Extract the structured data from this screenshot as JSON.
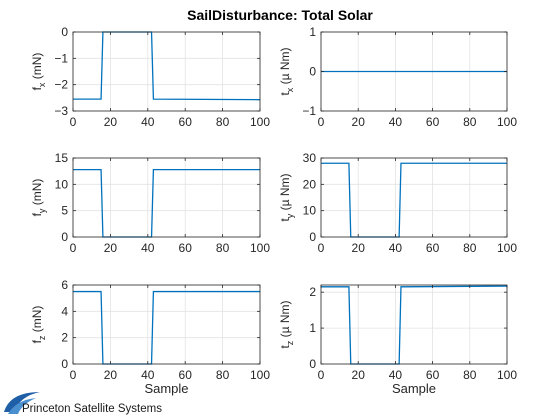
{
  "chart_data": {
    "title": "SailDisturbance: Total Solar",
    "type": "line",
    "line_color": "#0072BD",
    "grid": true,
    "subplots": [
      {
        "name": "fx",
        "ylabel": "f_x (mN)",
        "ylabel_main": "f",
        "ylabel_sub": "x",
        "ylabel_rest": " (mN)",
        "xlabel": "",
        "xlim": [
          0,
          100
        ],
        "ylim": [
          -3,
          0
        ],
        "xticks": [
          0,
          20,
          40,
          60,
          80,
          100
        ],
        "yticks": [
          0,
          -1,
          -2,
          -3
        ],
        "x": [
          0,
          15,
          16,
          42,
          43,
          100
        ],
        "y": [
          -2.55,
          -2.55,
          0,
          0,
          -2.55,
          -2.57
        ]
      },
      {
        "name": "tx",
        "ylabel": "t_x (µ Nm)",
        "ylabel_main": "t",
        "ylabel_sub": "x",
        "ylabel_rest": " (µ Nm)",
        "xlabel": "",
        "xlim": [
          0,
          100
        ],
        "ylim": [
          -1,
          1
        ],
        "xticks": [
          0,
          20,
          40,
          60,
          80,
          100
        ],
        "yticks": [
          1,
          0,
          -1
        ],
        "x": [
          0,
          100
        ],
        "y": [
          0,
          0
        ]
      },
      {
        "name": "fy",
        "ylabel": "f_y (mN)",
        "ylabel_main": "f",
        "ylabel_sub": "y",
        "ylabel_rest": " (mN)",
        "xlabel": "",
        "xlim": [
          0,
          100
        ],
        "ylim": [
          0,
          15
        ],
        "xticks": [
          0,
          20,
          40,
          60,
          80,
          100
        ],
        "yticks": [
          15,
          10,
          5,
          0
        ],
        "x": [
          0,
          15,
          16,
          42,
          43,
          100
        ],
        "y": [
          12.8,
          12.8,
          0,
          0,
          12.8,
          12.8
        ]
      },
      {
        "name": "ty",
        "ylabel": "t_y (µ Nm)",
        "ylabel_main": "t",
        "ylabel_sub": "y",
        "ylabel_rest": " (µ Nm)",
        "xlabel": "",
        "xlim": [
          0,
          100
        ],
        "ylim": [
          0,
          30
        ],
        "xticks": [
          0,
          20,
          40,
          60,
          80,
          100
        ],
        "yticks": [
          30,
          20,
          10,
          0
        ],
        "x": [
          0,
          15,
          16,
          42,
          43,
          100
        ],
        "y": [
          28,
          28,
          0,
          0,
          28,
          28
        ]
      },
      {
        "name": "fz",
        "ylabel": "f_z (mN)",
        "ylabel_main": "f",
        "ylabel_sub": "z",
        "ylabel_rest": " (mN)",
        "xlabel": "Sample",
        "xlim": [
          0,
          100
        ],
        "ylim": [
          0,
          6
        ],
        "xticks": [
          0,
          20,
          40,
          60,
          80,
          100
        ],
        "yticks": [
          6,
          4,
          2,
          0
        ],
        "x": [
          0,
          15,
          16,
          42,
          43,
          100
        ],
        "y": [
          5.5,
          5.5,
          0,
          0,
          5.5,
          5.5
        ]
      },
      {
        "name": "tz",
        "ylabel": "t_z (µ Nm)",
        "ylabel_main": "t",
        "ylabel_sub": "z",
        "ylabel_rest": " (µ Nm)",
        "xlabel": "Sample",
        "xlim": [
          0,
          100
        ],
        "ylim": [
          0,
          2.2
        ],
        "xticks": [
          0,
          20,
          40,
          60,
          80,
          100
        ],
        "yticks": [
          2,
          1,
          0
        ],
        "x": [
          0,
          15,
          16,
          42,
          43,
          100
        ],
        "y": [
          2.15,
          2.15,
          0,
          0,
          2.15,
          2.17
        ]
      }
    ]
  },
  "logo": {
    "text": "Princeton Satellite Systems",
    "icon": "psslogo-swoosh-icon"
  }
}
